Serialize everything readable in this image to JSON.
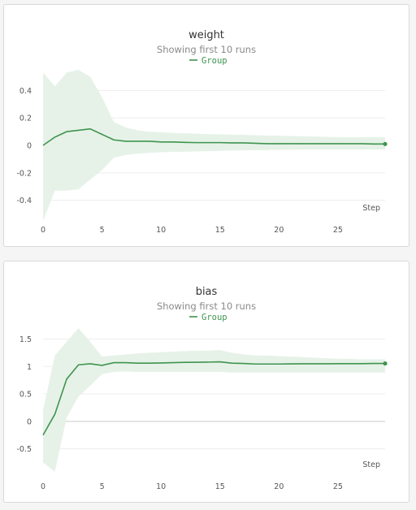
{
  "colors": {
    "line": "#3f944f",
    "band": "#e6f2e8",
    "grid": "#ededed",
    "zero": "#dcdcdc"
  },
  "chart_data": [
    {
      "type": "line",
      "title": "weight",
      "subtitle": "Showing first 10 runs",
      "legend": [
        "Group"
      ],
      "xlabel": "Step",
      "xlim": [
        0,
        29
      ],
      "ylim": [
        -0.55,
        0.55
      ],
      "xticks": [
        0,
        5,
        10,
        15,
        20,
        25
      ],
      "xtick_labels": [
        "0",
        "5",
        "10",
        "15",
        "20",
        "25"
      ],
      "yticks": [
        0.4,
        0.2,
        0,
        -0.2,
        -0.4
      ],
      "ytick_labels": [
        "0.4",
        "0.2",
        "0",
        "-0.2",
        "-0.4"
      ],
      "x": [
        0,
        1,
        2,
        3,
        4,
        5,
        6,
        7,
        8,
        9,
        10,
        11,
        12,
        13,
        14,
        15,
        16,
        17,
        18,
        19,
        20,
        21,
        22,
        23,
        24,
        25,
        26,
        27,
        28,
        29
      ],
      "series": [
        {
          "name": "Group",
          "values": [
            0.0,
            0.06,
            0.1,
            0.11,
            0.12,
            0.08,
            0.04,
            0.03,
            0.03,
            0.03,
            0.025,
            0.025,
            0.022,
            0.02,
            0.02,
            0.02,
            0.018,
            0.018,
            0.015,
            0.012,
            0.012,
            0.012,
            0.012,
            0.012,
            0.012,
            0.012,
            0.012,
            0.012,
            0.01,
            0.01
          ],
          "upper": [
            0.53,
            0.43,
            0.53,
            0.55,
            0.5,
            0.35,
            0.17,
            0.13,
            0.11,
            0.1,
            0.095,
            0.09,
            0.088,
            0.085,
            0.082,
            0.08,
            0.078,
            0.076,
            0.074,
            0.072,
            0.07,
            0.068,
            0.066,
            0.064,
            0.062,
            0.06,
            0.06,
            0.06,
            0.06,
            0.06
          ],
          "lower": [
            -0.55,
            -0.33,
            -0.33,
            -0.32,
            -0.25,
            -0.18,
            -0.09,
            -0.07,
            -0.06,
            -0.055,
            -0.05,
            -0.048,
            -0.046,
            -0.044,
            -0.042,
            -0.04,
            -0.038,
            -0.036,
            -0.035,
            -0.034,
            -0.033,
            -0.032,
            -0.031,
            -0.03,
            -0.03,
            -0.03,
            -0.03,
            -0.03,
            -0.03,
            -0.03
          ]
        }
      ]
    },
    {
      "type": "line",
      "title": "bias",
      "subtitle": "Showing first 10 runs",
      "legend": [
        "Group"
      ],
      "xlabel": "Step",
      "xlim": [
        0,
        29
      ],
      "ylim": [
        -0.95,
        1.7
      ],
      "xticks": [
        0,
        5,
        10,
        15,
        20,
        25
      ],
      "xtick_labels": [
        "0",
        "5",
        "10",
        "15",
        "20",
        "25"
      ],
      "yticks": [
        1.5,
        1,
        0.5,
        0,
        -0.5
      ],
      "ytick_labels": [
        "1.5",
        "1",
        "0.5",
        "0",
        "-0.5"
      ],
      "x": [
        0,
        1,
        2,
        3,
        4,
        5,
        6,
        7,
        8,
        9,
        10,
        11,
        12,
        13,
        14,
        15,
        16,
        17,
        18,
        19,
        20,
        21,
        22,
        23,
        24,
        25,
        26,
        27,
        28,
        29
      ],
      "series": [
        {
          "name": "Group",
          "values": [
            -0.25,
            0.13,
            0.77,
            1.03,
            1.05,
            1.02,
            1.07,
            1.07,
            1.06,
            1.06,
            1.065,
            1.07,
            1.075,
            1.078,
            1.08,
            1.085,
            1.06,
            1.055,
            1.045,
            1.045,
            1.045,
            1.048,
            1.05,
            1.05,
            1.05,
            1.052,
            1.052,
            1.052,
            1.055,
            1.055
          ],
          "upper": [
            0.2,
            1.2,
            1.45,
            1.7,
            1.45,
            1.18,
            1.2,
            1.22,
            1.24,
            1.25,
            1.26,
            1.27,
            1.28,
            1.29,
            1.29,
            1.3,
            1.25,
            1.22,
            1.2,
            1.2,
            1.19,
            1.18,
            1.17,
            1.16,
            1.15,
            1.14,
            1.14,
            1.13,
            1.13,
            1.13
          ],
          "lower": [
            -0.75,
            -0.92,
            0.07,
            0.45,
            0.65,
            0.86,
            0.9,
            0.91,
            0.9,
            0.9,
            0.9,
            0.9,
            0.9,
            0.9,
            0.9,
            0.9,
            0.89,
            0.89,
            0.89,
            0.89,
            0.89,
            0.89,
            0.89,
            0.89,
            0.89,
            0.89,
            0.89,
            0.89,
            0.89,
            0.89
          ]
        }
      ]
    }
  ]
}
